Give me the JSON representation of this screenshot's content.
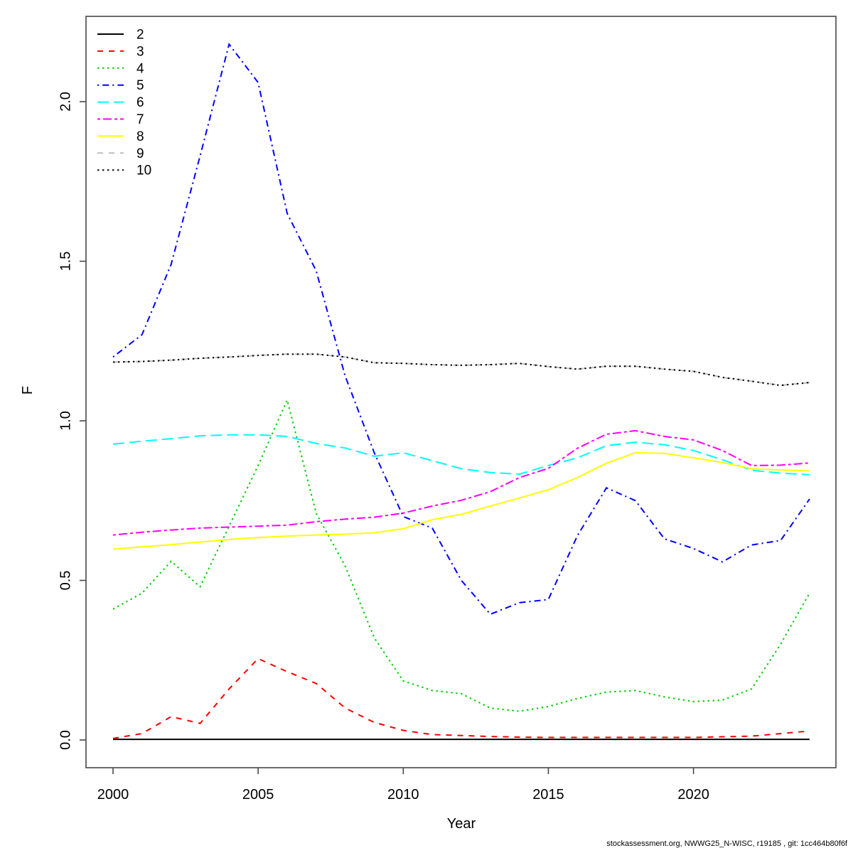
{
  "page": {
    "background": "#ffffff"
  },
  "footer": {
    "text": "stockassessment.org, NWWG25_N-WISC, r19185 , git: 1cc464b80f6f"
  },
  "chart_data": {
    "type": "line",
    "title": "",
    "xlabel": "Year",
    "ylabel": "F",
    "grid": false,
    "legend_position": "top-left",
    "xlim": [
      1999,
      2025
    ],
    "ylim": [
      -0.09,
      2.27
    ],
    "x": [
      2000,
      2001,
      2002,
      2003,
      2004,
      2005,
      2006,
      2007,
      2008,
      2009,
      2010,
      2011,
      2012,
      2013,
      2014,
      2015,
      2016,
      2017,
      2018,
      2019,
      2020,
      2021,
      2022,
      2023,
      2024
    ],
    "xticks": [
      {
        "value": 2000,
        "label": "2000"
      },
      {
        "value": 2005,
        "label": "2005"
      },
      {
        "value": 2010,
        "label": "2010"
      },
      {
        "value": 2015,
        "label": "2015"
      },
      {
        "value": 2020,
        "label": "2020"
      }
    ],
    "yticks": [
      {
        "value": 0.0,
        "label": "0.0"
      },
      {
        "value": 0.5,
        "label": "0.5"
      },
      {
        "value": 1.0,
        "label": "1.0"
      },
      {
        "value": 1.5,
        "label": "1.5"
      },
      {
        "value": 2.0,
        "label": "2.0"
      }
    ],
    "series": [
      {
        "name": "2",
        "color": "#000000",
        "linetype": "solid",
        "values": [
          0.002,
          0.002,
          0.002,
          0.002,
          0.002,
          0.002,
          0.002,
          0.002,
          0.002,
          0.002,
          0.002,
          0.002,
          0.002,
          0.002,
          0.002,
          0.002,
          0.002,
          0.002,
          0.002,
          0.002,
          0.002,
          0.002,
          0.002,
          0.002,
          0.002
        ]
      },
      {
        "name": "3",
        "color": "#FF0000",
        "linetype": "dashed",
        "values": [
          0.005,
          0.02,
          0.073,
          0.052,
          0.16,
          0.255,
          0.214,
          0.177,
          0.1,
          0.055,
          0.03,
          0.017,
          0.014,
          0.011,
          0.009,
          0.008,
          0.008,
          0.008,
          0.008,
          0.008,
          0.008,
          0.01,
          0.012,
          0.02,
          0.028
        ]
      },
      {
        "name": "4",
        "color": "#00CD00",
        "linetype": "dotted",
        "values": [
          0.41,
          0.46,
          0.56,
          0.48,
          0.67,
          0.86,
          1.065,
          0.71,
          0.545,
          0.32,
          0.185,
          0.155,
          0.145,
          0.1,
          0.09,
          0.105,
          0.13,
          0.15,
          0.155,
          0.135,
          0.12,
          0.125,
          0.16,
          0.3,
          0.46
        ]
      },
      {
        "name": "5",
        "color": "#0000FF",
        "linetype": "dotdash",
        "values": [
          1.2,
          1.27,
          1.49,
          1.83,
          2.18,
          2.06,
          1.65,
          1.47,
          1.14,
          0.9,
          0.7,
          0.664,
          0.5,
          0.394,
          0.43,
          0.44,
          0.64,
          0.79,
          0.75,
          0.63,
          0.6,
          0.558,
          0.611,
          0.625,
          0.755
        ]
      },
      {
        "name": "6",
        "color": "#00FFFF",
        "linetype": "longdash",
        "values": [
          0.927,
          0.936,
          0.944,
          0.953,
          0.956,
          0.956,
          0.951,
          0.929,
          0.915,
          0.889,
          0.9,
          0.875,
          0.85,
          0.838,
          0.833,
          0.86,
          0.884,
          0.922,
          0.933,
          0.925,
          0.907,
          0.878,
          0.845,
          0.836,
          0.831
        ]
      },
      {
        "name": "7",
        "color": "#FF00FF",
        "linetype": "twodash",
        "values": [
          0.642,
          0.651,
          0.658,
          0.664,
          0.667,
          0.67,
          0.673,
          0.684,
          0.692,
          0.698,
          0.711,
          0.733,
          0.751,
          0.778,
          0.822,
          0.851,
          0.914,
          0.958,
          0.969,
          0.951,
          0.94,
          0.907,
          0.86,
          0.861,
          0.868
        ]
      },
      {
        "name": "8",
        "color": "#FFFF00",
        "linetype": "solid",
        "values": [
          0.598,
          0.605,
          0.612,
          0.62,
          0.628,
          0.634,
          0.639,
          0.642,
          0.645,
          0.649,
          0.662,
          0.69,
          0.707,
          0.733,
          0.758,
          0.784,
          0.822,
          0.867,
          0.9,
          0.898,
          0.884,
          0.869,
          0.85,
          0.846,
          0.843
        ]
      },
      {
        "name": "9",
        "color": "#BEBEBE",
        "linetype": "dashed",
        "values": [
          1.184,
          1.186,
          1.19,
          1.196,
          1.2,
          1.205,
          1.209,
          1.209,
          1.2,
          1.182,
          1.18,
          1.176,
          1.174,
          1.176,
          1.18,
          1.17,
          1.162,
          1.171,
          1.171,
          1.162,
          1.155,
          1.136,
          1.124,
          1.111,
          1.12
        ]
      },
      {
        "name": "10",
        "color": "#000000",
        "linetype": "dotted",
        "values": [
          1.184,
          1.186,
          1.19,
          1.196,
          1.2,
          1.205,
          1.209,
          1.209,
          1.2,
          1.182,
          1.18,
          1.176,
          1.174,
          1.176,
          1.18,
          1.17,
          1.162,
          1.171,
          1.171,
          1.162,
          1.155,
          1.136,
          1.124,
          1.111,
          1.12
        ]
      }
    ]
  }
}
